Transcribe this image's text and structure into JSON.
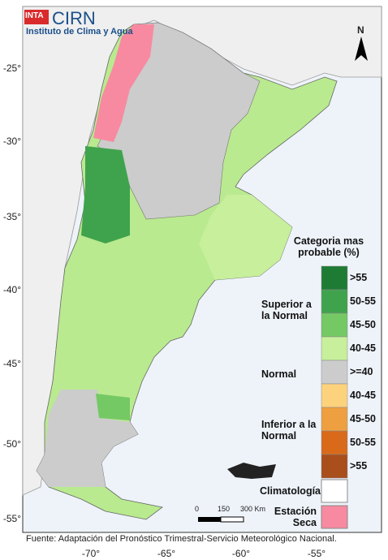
{
  "logo": {
    "inta": "INTA",
    "name": "CIRN",
    "subtitle": "Instituto de Clima y Agua"
  },
  "map": {
    "lat_labels": [
      "-25°",
      "-30°",
      "-35°",
      "-40°",
      "-45°",
      "-50°",
      "-55°"
    ],
    "lon_labels": [
      "-70°",
      "-65°",
      "-60°",
      "-55°"
    ],
    "compass": "N",
    "scale_labels": [
      "0",
      "150",
      "300 Km"
    ]
  },
  "legend": {
    "title": "Categoria mas probable (%)",
    "groups": [
      "Superior a la Normal",
      "Normal",
      "Inferior a la Normal"
    ],
    "classes": [
      {
        "label": ">55",
        "color": "#1e7b34"
      },
      {
        "label": "50-55",
        "color": "#3fa34d"
      },
      {
        "label": "45-50",
        "color": "#74c964"
      },
      {
        "label": "40-45",
        "color": "#c7ef9c"
      },
      {
        "label": ">=40",
        "color": "#cccccc"
      },
      {
        "label": "40-45",
        "color": "#fdd27d"
      },
      {
        "label": "45-50",
        "color": "#eea040"
      },
      {
        "label": "50-55",
        "color": "#d86a1a"
      },
      {
        "label": ">55",
        "color": "#a84f1c"
      }
    ],
    "climatology": {
      "label": "Climatología",
      "color": "#ffffff"
    },
    "dry_season": {
      "label": "Estación Seca",
      "color": "#f78aa0"
    }
  },
  "footer": "Fuente: Adaptación del Pronóstico Trimestral-Servicio Meteorológico Nacional."
}
